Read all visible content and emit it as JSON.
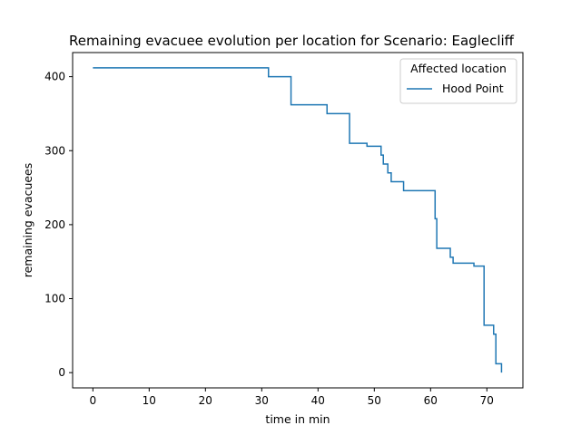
{
  "chart_data": {
    "type": "line",
    "step": "post",
    "title": "Remaining evacuee evolution per location for Scenario: Eaglecliff",
    "xlabel": "time in min",
    "ylabel": "remaining evacuees",
    "xlim": [
      -3.6,
      76.4
    ],
    "ylim": [
      -20.6,
      432.6
    ],
    "xticks": [
      0,
      10,
      20,
      30,
      40,
      50,
      60,
      70
    ],
    "yticks": [
      0,
      100,
      200,
      300,
      400
    ],
    "grid": false,
    "legend": {
      "title": "Affected location",
      "placement": "top-right"
    },
    "colors": {
      "series": "#1f77b4"
    },
    "series": [
      {
        "name": "Hood Point",
        "x": [
          0,
          31.2,
          35.2,
          41.6,
          45.6,
          48.7,
          51.2,
          51.6,
          52.4,
          53.0,
          55.2,
          60.8,
          61.1,
          63.5,
          64.0,
          67.7,
          69.5,
          71.2,
          71.6,
          72.6
        ],
        "y": [
          412,
          400,
          362,
          350,
          310,
          306,
          294,
          282,
          270,
          258,
          246,
          208,
          168,
          156,
          148,
          144,
          64,
          52,
          12,
          0
        ]
      }
    ]
  }
}
